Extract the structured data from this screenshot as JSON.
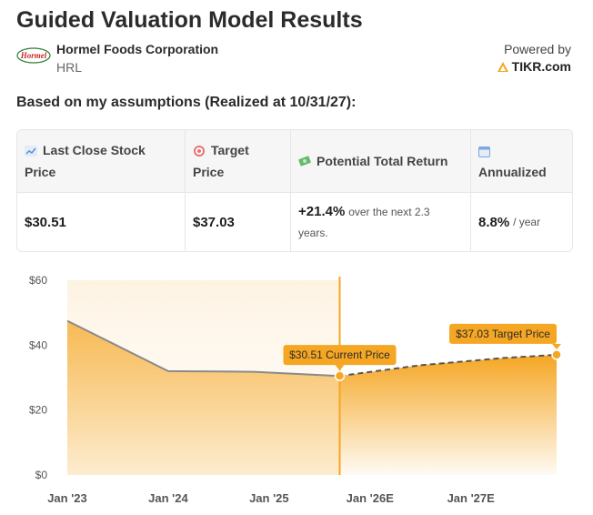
{
  "header": {
    "title": "Guided Valuation Model Results",
    "company": "Hormel Foods Corporation",
    "ticker": "HRL",
    "logo_text": "Hormel",
    "powered_by": "Powered by",
    "brand": "TIKR.com"
  },
  "subtitle": "Based on my assumptions (Realized at 10/31/27):",
  "table": {
    "headers": {
      "close_a": "Last Close Stock",
      "close_b": "Price",
      "target_a": "Target",
      "target_b": "Price",
      "return": "Potential Total Return",
      "annualized": "Annualized"
    },
    "values": {
      "close": "$30.51",
      "target": "$37.03",
      "return_value": "+21.4%",
      "return_text_a": "over the next 2.3",
      "return_text_b": "years.",
      "annualized_value": "8.8%",
      "annualized_unit": "/ year"
    }
  },
  "colors": {
    "accent": "#f5a623",
    "fill": "#f7b84b",
    "line": "#8a8a8a"
  },
  "chart_data": {
    "type": "area",
    "x_ticks": [
      "Jan '23",
      "Jan '24",
      "Jan '25",
      "Jan '26E",
      "Jan '27E"
    ],
    "y_ticks": [
      "$0",
      "$20",
      "$40",
      "$60"
    ],
    "ylim": [
      0,
      60
    ],
    "xlim": [
      2023.0,
      2027.85
    ],
    "historical": {
      "x": [
        2023.0,
        2024.0,
        2024.85,
        2025.7
      ],
      "y": [
        47.5,
        32.0,
        31.8,
        30.51
      ]
    },
    "projection": {
      "x": [
        2025.7,
        2026.5,
        2027.3,
        2027.85
      ],
      "y": [
        30.51,
        33.8,
        36.0,
        37.03
      ]
    },
    "current_x": 2025.7,
    "annotations": {
      "current": "$30.51 Current Price",
      "target": "$37.03 Target Price"
    }
  }
}
